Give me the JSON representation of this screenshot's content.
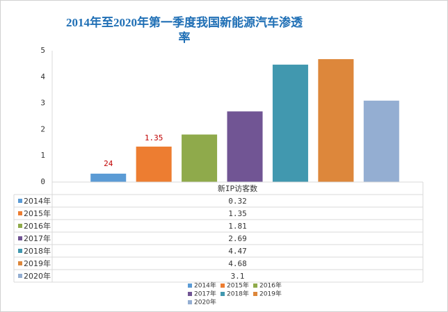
{
  "chart_data": {
    "type": "bar",
    "title": "2014年至2020年第一季度我国新能源汽车渗透率",
    "series_name": "新IP访客数",
    "categories": [
      "2014年",
      "2015年",
      "2016年",
      "2017年",
      "2018年",
      "2019年",
      "2020年"
    ],
    "values": [
      0.32,
      1.35,
      1.81,
      2.69,
      4.47,
      4.68,
      3.1
    ],
    "colors": [
      "#5b9bd5",
      "#ed7d31",
      "#8faa4b",
      "#715594",
      "#4198af",
      "#dd873b",
      "#94aed2"
    ],
    "value_labels": [
      null,
      "1.35",
      null,
      null,
      null,
      null,
      null
    ],
    "annotations": [
      "24"
    ],
    "ylim": [
      0,
      5
    ],
    "yticks": [
      0,
      1,
      2,
      3,
      4,
      5
    ],
    "grid": false
  }
}
